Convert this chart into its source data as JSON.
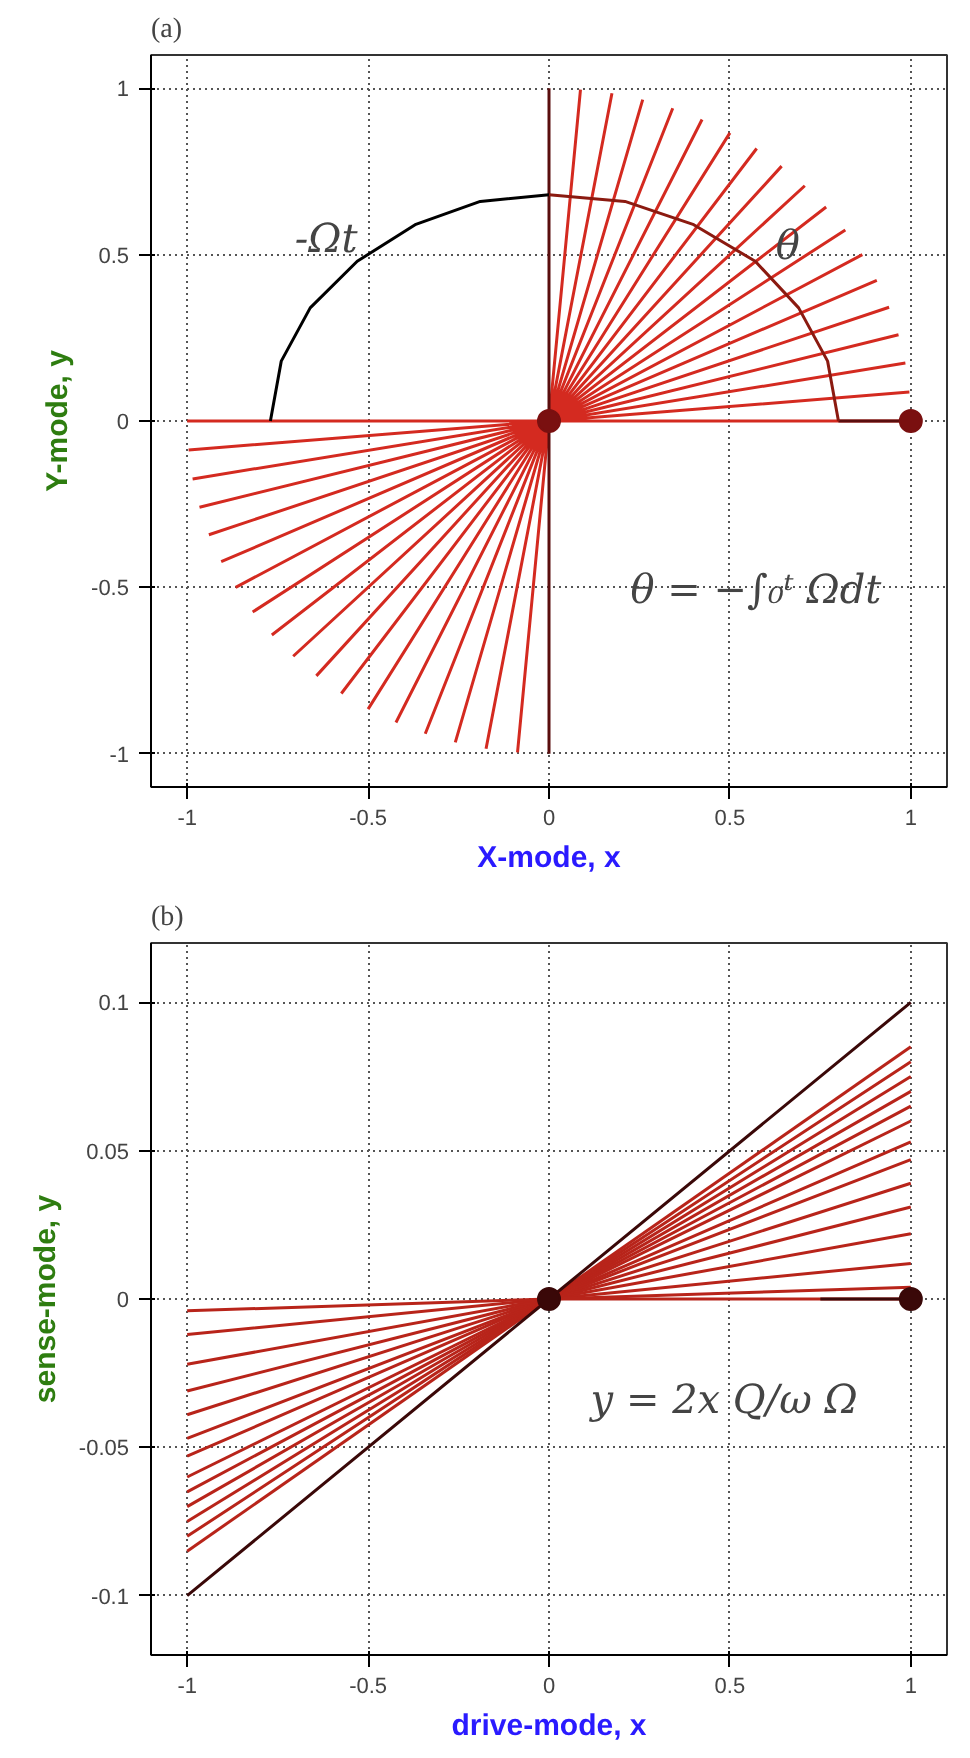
{
  "chart_data": [
    {
      "type": "line",
      "title": "(a)",
      "xlabel": "X-mode, x",
      "ylabel": "Y-mode, y",
      "xlim": [
        -1.1,
        1.1
      ],
      "ylim": [
        -1.1,
        1.1
      ],
      "xticks": [
        -1,
        -0.5,
        0,
        0.5,
        1
      ],
      "yticks": [
        -1,
        -0.5,
        0,
        0.5,
        1
      ],
      "grid": true,
      "series": [
        {
          "color": "#d42a20",
          "x": [
            1,
            -1,
            0,
            0.996,
            -0.996,
            0,
            0.985,
            -0.985,
            0,
            0.966,
            -0.966,
            0,
            0.94,
            -0.94,
            0,
            0.906,
            -0.906,
            0,
            0.866,
            -0.866,
            0,
            0.819,
            -0.819,
            0,
            0.766,
            -0.766,
            0,
            0.707,
            -0.707,
            0,
            0.643,
            -0.643,
            0,
            0.574,
            -0.574,
            0,
            0.5,
            -0.5,
            0,
            0.423,
            -0.423,
            0,
            0.342,
            -0.342,
            0,
            0.259,
            -0.259,
            0,
            0.174,
            -0.174,
            0,
            0.087,
            -0.087
          ],
          "values": [
            0,
            0,
            null,
            0.087,
            -0.087,
            null,
            0.174,
            -0.174,
            null,
            0.259,
            -0.259,
            null,
            0.342,
            -0.342,
            null,
            0.423,
            -0.423,
            null,
            0.5,
            -0.5,
            null,
            0.574,
            -0.574,
            null,
            0.643,
            -0.643,
            null,
            0.707,
            -0.707,
            null,
            0.766,
            -0.766,
            null,
            0.819,
            -0.819,
            null,
            0.866,
            -0.866,
            null,
            0.906,
            -0.906,
            null,
            0.94,
            -0.94,
            null,
            0.966,
            -0.966,
            null,
            0.985,
            -0.985,
            null,
            0.996,
            -0.996
          ]
        },
        {
          "color": "#5a0e0e",
          "x": [
            0,
            0
          ],
          "values": [
            -1,
            1
          ]
        },
        {
          "color": "#5a0e0e",
          "x": [
            1,
            0.8
          ],
          "values": [
            0,
            0
          ]
        },
        {
          "color": "#000000",
          "x": [
            -0.77,
            -0.74,
            -0.66,
            -0.53,
            -0.37,
            -0.19,
            0
          ],
          "values": [
            0,
            0.18,
            0.34,
            0.48,
            0.59,
            0.66,
            0.68
          ]
        },
        {
          "color": "#8b1a10",
          "x": [
            0.8,
            0.77,
            0.69,
            0.57,
            0.4,
            0.21,
            0
          ],
          "values": [
            0,
            0.18,
            0.34,
            0.48,
            0.59,
            0.66,
            0.68
          ]
        },
        {
          "type": "scatter",
          "marker": "circle",
          "color": "#7a1010",
          "x": [
            0,
            1
          ],
          "values": [
            0,
            0
          ]
        }
      ],
      "annotations": [
        "-Ωt",
        "θ",
        "θ = −∫₀ᵗ Ωdt"
      ]
    },
    {
      "type": "line",
      "title": "(b)",
      "xlabel": "drive-mode, x",
      "ylabel": "sense-mode, y",
      "xlim": [
        -1.1,
        1.1
      ],
      "ylim": [
        -0.12,
        0.12
      ],
      "xticks": [
        -1,
        -0.5,
        0,
        0.5,
        1
      ],
      "yticks": [
        -0.1,
        -0.05,
        0,
        0.05,
        0.1
      ],
      "grid": true,
      "series": [
        {
          "color": "#b8241a",
          "x": [
            -1,
            0,
            1
          ],
          "values": [
            -0.085,
            0,
            0.085
          ]
        },
        {
          "color": "#b8241a",
          "x": [
            -1,
            0,
            1
          ],
          "values": [
            -0.08,
            0,
            0.08
          ]
        },
        {
          "color": "#b8241a",
          "x": [
            -1,
            0,
            1
          ],
          "values": [
            -0.075,
            0,
            0.075
          ]
        },
        {
          "color": "#b8241a",
          "x": [
            -1,
            0,
            1
          ],
          "values": [
            -0.07,
            0,
            0.07
          ]
        },
        {
          "color": "#b8241a",
          "x": [
            -1,
            0,
            1
          ],
          "values": [
            -0.065,
            0,
            0.065
          ]
        },
        {
          "color": "#b8241a",
          "x": [
            -1,
            0,
            1
          ],
          "values": [
            -0.06,
            0,
            0.06
          ]
        },
        {
          "color": "#b8241a",
          "x": [
            -1,
            0,
            1
          ],
          "values": [
            -0.053,
            0,
            0.053
          ]
        },
        {
          "color": "#b8241a",
          "x": [
            -1,
            0,
            1
          ],
          "values": [
            -0.047,
            0,
            0.047
          ]
        },
        {
          "color": "#b8241a",
          "x": [
            -1,
            0,
            1
          ],
          "values": [
            -0.039,
            0,
            0.039
          ]
        },
        {
          "color": "#b8241a",
          "x": [
            -1,
            0,
            1
          ],
          "values": [
            -0.031,
            0,
            0.031
          ]
        },
        {
          "color": "#b8241a",
          "x": [
            -1,
            0,
            1
          ],
          "values": [
            -0.022,
            0,
            0.022
          ]
        },
        {
          "color": "#b8241a",
          "x": [
            -1,
            0,
            1
          ],
          "values": [
            -0.012,
            0,
            0.012
          ]
        },
        {
          "color": "#b8241a",
          "x": [
            -1,
            0,
            1
          ],
          "values": [
            -0.004,
            0,
            0.004
          ]
        },
        {
          "color": "#b8241a",
          "x": [
            0,
            1
          ],
          "values": [
            0,
            0
          ]
        },
        {
          "color": "#3a0808",
          "x": [
            -1,
            0,
            1
          ],
          "values": [
            -0.1,
            0,
            0.1
          ]
        },
        {
          "color": "#3a0808",
          "x": [
            1,
            0.75
          ],
          "values": [
            0,
            0
          ]
        },
        {
          "type": "scatter",
          "marker": "circle",
          "color": "#3a0808",
          "x": [
            0,
            1
          ],
          "values": [
            0,
            0
          ]
        }
      ],
      "annotations": [
        "y = 2x Q/ω Ω"
      ]
    }
  ]
}
